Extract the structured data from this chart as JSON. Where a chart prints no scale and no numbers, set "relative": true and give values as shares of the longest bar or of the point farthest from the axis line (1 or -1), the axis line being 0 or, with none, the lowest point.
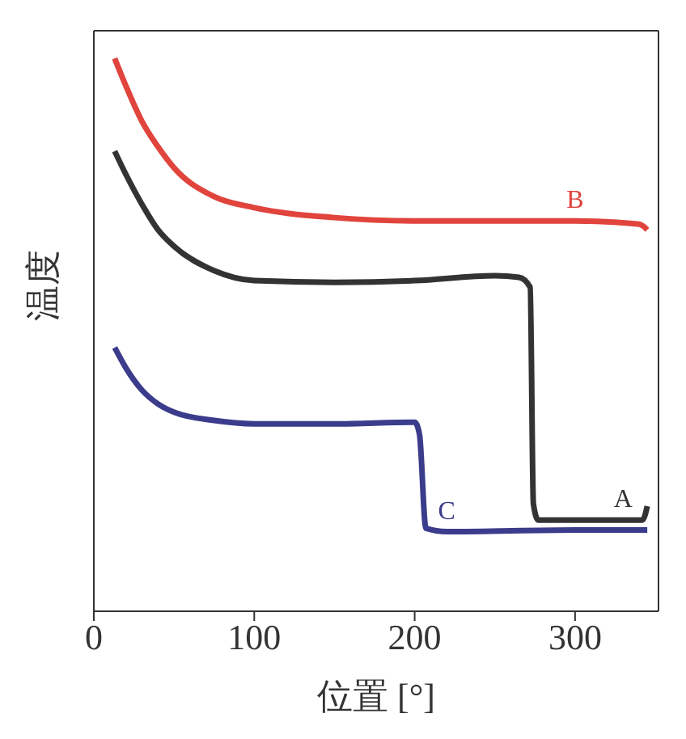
{
  "chart_data": {
    "type": "line",
    "relative": true,
    "xlabel": "位置 [°]",
    "ylabel": "温度",
    "xlim": [
      0,
      352
    ],
    "xticks": [
      0,
      100,
      200,
      300
    ],
    "marker": "none",
    "line_style": "solid",
    "series": [
      {
        "name": "A",
        "color": "#333333",
        "x": [
          13,
          20,
          30,
          40,
          50,
          75,
          100,
          150,
          200,
          250,
          265,
          272,
          274,
          277,
          300,
          330,
          342,
          345
        ],
        "values": [
          0.832,
          0.79,
          0.736,
          0.69,
          0.66,
          0.616,
          0.598,
          0.595,
          0.598,
          0.607,
          0.604,
          0.586,
          0.195,
          0.165,
          0.165,
          0.165,
          0.165,
          0.19
        ]
      },
      {
        "name": "B",
        "color": "#e0443c",
        "x": [
          13,
          20,
          30,
          40,
          50,
          75,
          100,
          150,
          200,
          250,
          300,
          340,
          345
        ],
        "values": [
          1.0,
          0.95,
          0.886,
          0.84,
          0.802,
          0.75,
          0.73,
          0.712,
          0.706,
          0.706,
          0.706,
          0.7,
          0.69
        ]
      },
      {
        "name": "C",
        "color": "#3c3c8c",
        "x": [
          13,
          20,
          30,
          40,
          50,
          75,
          100,
          150,
          200,
          203,
          207,
          220,
          300,
          345
        ],
        "values": [
          0.477,
          0.44,
          0.4,
          0.375,
          0.36,
          0.345,
          0.339,
          0.339,
          0.342,
          0.32,
          0.15,
          0.144,
          0.147,
          0.147
        ]
      }
    ]
  }
}
